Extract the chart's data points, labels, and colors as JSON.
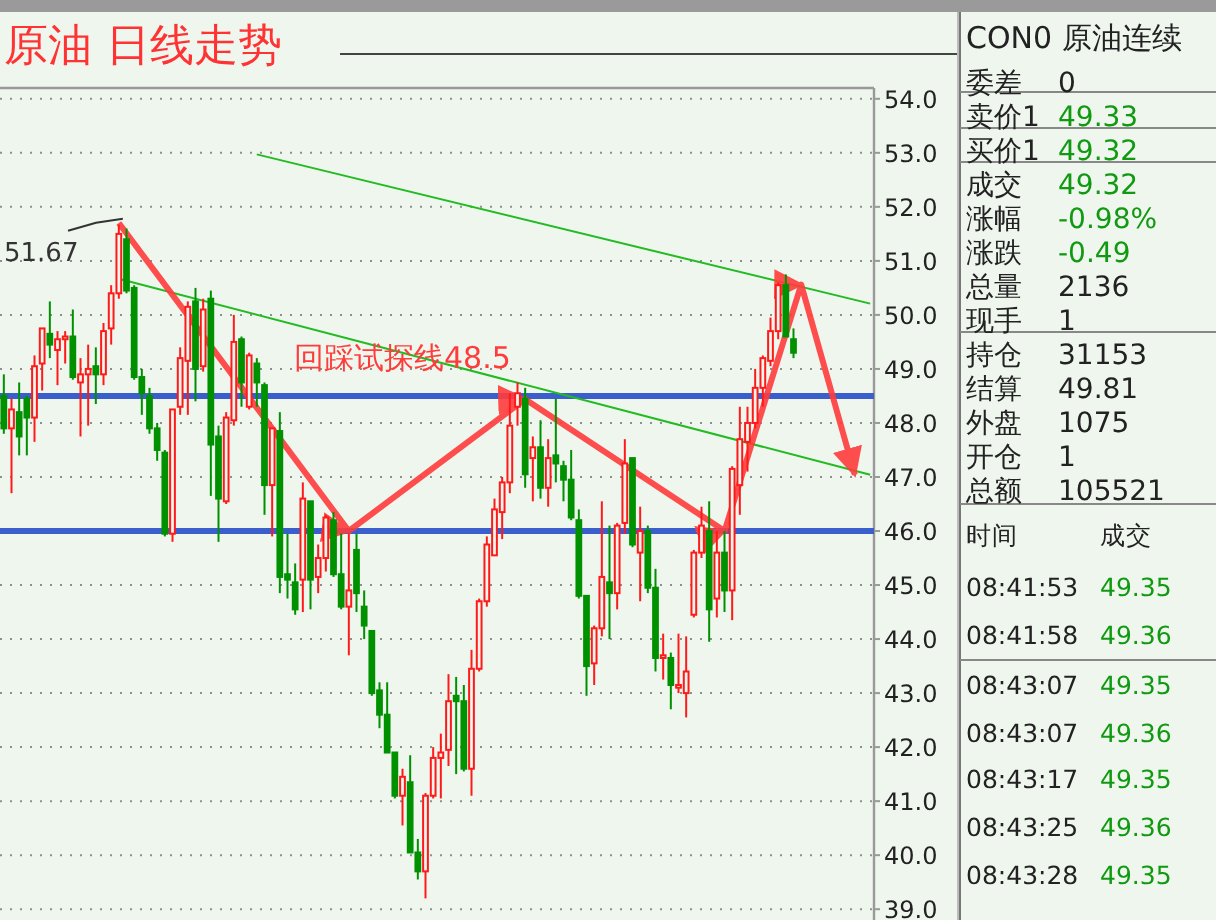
{
  "chart_data": [
    {
      "type": "candlestick",
      "title": "原油 日线走势",
      "categories": [
        null,
        null,
        null,
        null,
        null,
        null,
        null,
        null,
        null,
        null,
        null,
        null,
        null,
        null,
        null,
        null,
        null,
        null,
        null,
        null,
        null,
        null,
        null,
        null,
        null,
        null,
        null,
        null,
        null,
        null,
        null,
        null,
        null,
        null,
        null,
        null,
        null,
        null,
        null,
        null,
        null,
        null,
        null,
        null,
        null,
        null,
        null,
        null,
        null,
        null,
        null,
        null,
        null,
        null,
        null,
        null,
        null,
        null,
        null,
        null,
        null,
        null,
        null,
        null,
        null,
        null,
        null,
        null,
        null,
        null,
        null,
        null,
        null,
        null,
        null,
        null,
        null,
        null,
        null,
        null,
        null,
        null,
        null,
        null,
        null,
        null,
        null,
        null,
        null,
        null,
        null,
        null,
        null,
        null,
        null,
        null,
        null,
        null,
        null,
        null,
        null,
        null,
        null,
        null,
        null,
        null,
        null,
        null,
        null,
        null,
        null,
        null,
        null,
        null
      ],
      "ohlc": [
        [
          48.5,
          48.9,
          47.8,
          47.9
        ],
        [
          47.9,
          48.45,
          46.7,
          48.25
        ],
        [
          48.2,
          48.75,
          47.4,
          47.75
        ],
        [
          48.45,
          48.5,
          47.4,
          48.1
        ],
        [
          48.1,
          49.25,
          47.65,
          49.05
        ],
        [
          49.1,
          49.75,
          48.6,
          49.75
        ],
        [
          49.65,
          50.25,
          49.2,
          49.45
        ],
        [
          49.35,
          49.7,
          48.7,
          49.55
        ],
        [
          49.55,
          49.7,
          49.1,
          49.6
        ],
        [
          49.6,
          50.1,
          48.8,
          48.85
        ],
        [
          48.75,
          49.2,
          47.75,
          48.9
        ],
        [
          48.9,
          49.45,
          47.95,
          49.0
        ],
        [
          49.05,
          49.4,
          48.35,
          48.9
        ],
        [
          48.9,
          49.85,
          48.7,
          49.7
        ],
        [
          49.75,
          50.55,
          49.45,
          50.4
        ],
        [
          50.4,
          51.67,
          50.3,
          51.5
        ],
        [
          51.4,
          51.6,
          50.4,
          50.45
        ],
        [
          50.5,
          50.55,
          48.8,
          48.85
        ],
        [
          48.85,
          49.0,
          48.15,
          48.55
        ],
        [
          48.5,
          48.65,
          47.8,
          47.9
        ],
        [
          47.9,
          48.0,
          47.3,
          47.5
        ],
        [
          47.45,
          47.5,
          45.9,
          45.95
        ],
        [
          45.95,
          48.25,
          45.8,
          48.25
        ],
        [
          48.3,
          49.4,
          48.15,
          49.2
        ],
        [
          49.15,
          50.25,
          48.15,
          50.15
        ],
        [
          50.25,
          50.5,
          48.4,
          49.0
        ],
        [
          49.05,
          50.3,
          48.95,
          50.1
        ],
        [
          50.3,
          50.45,
          46.65,
          47.6
        ],
        [
          47.75,
          47.95,
          45.8,
          46.6
        ],
        [
          46.55,
          48.2,
          46.5,
          48.1
        ],
        [
          48.05,
          50.0,
          47.95,
          49.5
        ],
        [
          49.55,
          49.6,
          48.3,
          48.75
        ],
        [
          48.3,
          49.3,
          48.25,
          49.25
        ],
        [
          49.1,
          49.2,
          48.3,
          48.75
        ],
        [
          48.7,
          48.75,
          46.3,
          46.85
        ],
        [
          46.85,
          47.9,
          45.9,
          47.9
        ],
        [
          47.85,
          48.2,
          44.85,
          45.15
        ],
        [
          45.2,
          45.95,
          44.75,
          45.1
        ],
        [
          45.05,
          45.4,
          44.45,
          44.55
        ],
        [
          45.1,
          46.9,
          44.5,
          46.6
        ],
        [
          46.55,
          46.55,
          44.55,
          45.1
        ],
        [
          45.15,
          45.75,
          44.85,
          45.5
        ],
        [
          45.5,
          46.3,
          45.25,
          46.25
        ],
        [
          46.2,
          46.35,
          45.15,
          45.2
        ],
        [
          45.2,
          45.95,
          44.55,
          44.6
        ],
        [
          44.6,
          45.95,
          43.7,
          44.9
        ],
        [
          45.65,
          45.95,
          44.5,
          44.85
        ],
        [
          44.6,
          44.9,
          44.0,
          44.25
        ],
        [
          44.15,
          44.15,
          42.95,
          43.0
        ],
        [
          43.05,
          43.2,
          42.35,
          42.6
        ],
        [
          42.6,
          43.2,
          41.9,
          41.9
        ],
        [
          41.9,
          41.9,
          41.05,
          41.1
        ],
        [
          41.1,
          41.6,
          40.55,
          41.45
        ],
        [
          41.35,
          41.85,
          40.05,
          40.05
        ],
        [
          40.05,
          40.3,
          39.55,
          39.7
        ],
        [
          39.7,
          41.15,
          39.2,
          41.1
        ],
        [
          41.1,
          42.0,
          41.05,
          41.8
        ],
        [
          41.8,
          42.25,
          41.05,
          41.9
        ],
        [
          41.95,
          43.35,
          41.65,
          42.85
        ],
        [
          42.95,
          43.3,
          41.5,
          42.85
        ],
        [
          42.85,
          43.15,
          41.55,
          41.6
        ],
        [
          41.6,
          43.8,
          41.1,
          43.45
        ],
        [
          43.45,
          44.75,
          43.4,
          44.7
        ],
        [
          44.7,
          45.9,
          44.6,
          45.75
        ],
        [
          45.55,
          46.6,
          45.55,
          46.4
        ],
        [
          46.35,
          47.0,
          45.85,
          46.9
        ],
        [
          46.9,
          48.55,
          46.7,
          47.95
        ],
        [
          48.3,
          48.75,
          47.95,
          48.55
        ],
        [
          48.45,
          48.65,
          46.8,
          47.05
        ],
        [
          47.35,
          47.75,
          46.55,
          47.55
        ],
        [
          47.55,
          48.05,
          46.6,
          46.8
        ],
        [
          46.8,
          47.7,
          46.45,
          47.35
        ],
        [
          47.4,
          48.45,
          46.9,
          47.25
        ],
        [
          47.2,
          47.3,
          46.55,
          46.95
        ],
        [
          46.95,
          47.5,
          46.2,
          46.25
        ],
        [
          46.2,
          46.4,
          44.75,
          44.8
        ],
        [
          44.8,
          44.8,
          42.95,
          43.5
        ],
        [
          43.55,
          44.25,
          43.15,
          44.2
        ],
        [
          44.2,
          46.55,
          44.05,
          45.15
        ],
        [
          45.05,
          46.1,
          44.0,
          44.85
        ],
        [
          44.85,
          46.15,
          44.55,
          46.1
        ],
        [
          46.15,
          47.7,
          45.95,
          47.25
        ],
        [
          47.35,
          47.35,
          45.7,
          45.75
        ],
        [
          45.6,
          46.45,
          44.7,
          46.0
        ],
        [
          46.0,
          46.1,
          44.85,
          44.95
        ],
        [
          44.95,
          45.3,
          43.4,
          43.65
        ],
        [
          43.65,
          44.1,
          43.25,
          43.7
        ],
        [
          43.65,
          43.75,
          42.7,
          43.15
        ],
        [
          43.1,
          44.1,
          43.0,
          43.15
        ],
        [
          43.0,
          44.05,
          42.55,
          43.4
        ],
        [
          44.45,
          45.65,
          44.4,
          45.6
        ],
        [
          45.6,
          46.45,
          45.5,
          46.1
        ],
        [
          46.0,
          46.55,
          43.95,
          44.55
        ],
        [
          44.75,
          46.0,
          44.4,
          45.6
        ],
        [
          45.6,
          46.0,
          44.5,
          44.9
        ],
        [
          44.9,
          47.2,
          44.35,
          47.15
        ],
        [
          46.85,
          48.3,
          46.3,
          47.7
        ],
        [
          47.65,
          48.3,
          47.1,
          48.0
        ],
        [
          48.0,
          49.0,
          47.9,
          48.65
        ],
        [
          48.65,
          49.25,
          48.3,
          49.2
        ],
        [
          49.15,
          49.95,
          49.05,
          49.7
        ],
        [
          49.7,
          50.6,
          49.55,
          50.55
        ],
        [
          50.55,
          50.75,
          49.6,
          49.6
        ],
        [
          49.55,
          49.75,
          49.2,
          49.3
        ],
        null,
        null,
        null,
        null,
        null,
        null,
        null,
        null,
        null,
        null
      ],
      "colors": [
        "#009100",
        "#ff1a1a",
        "#009100",
        "#009100",
        "#ff1a1a",
        "#ff1a1a",
        "#009100",
        "#ff1a1a",
        "#ff1a1a",
        "#009100",
        "#ff1a1a",
        "#ff1a1a",
        "#009100",
        "#ff1a1a",
        "#ff1a1a",
        "#ff1a1a",
        "#009100",
        "#009100",
        "#009100",
        "#009100",
        "#009100",
        "#009100",
        "#ff1a1a",
        "#ff1a1a",
        "#ff1a1a",
        "#009100",
        "#ff1a1a",
        "#009100",
        "#009100",
        "#ff1a1a",
        "#ff1a1a",
        "#009100",
        "#ff1a1a",
        "#009100",
        "#009100",
        "#ff1a1a",
        "#009100",
        "#009100",
        "#009100",
        "#ff1a1a",
        "#009100",
        "#ff1a1a",
        "#ff1a1a",
        "#009100",
        "#009100",
        "#ff1a1a",
        "#009100",
        "#009100",
        "#009100",
        "#009100",
        "#009100",
        "#009100",
        "#ff1a1a",
        "#009100",
        "#009100",
        "#ff1a1a",
        "#ff1a1a",
        "#ff1a1a",
        "#ff1a1a",
        "#009100",
        "#009100",
        "#ff1a1a",
        "#ff1a1a",
        "#ff1a1a",
        "#ff1a1a",
        "#ff1a1a",
        "#ff1a1a",
        "#ff1a1a",
        "#009100",
        "#ff1a1a",
        "#009100",
        "#ff1a1a",
        "#009100",
        "#009100",
        "#009100",
        "#009100",
        "#009100",
        "#ff1a1a",
        "#ff1a1a",
        "#009100",
        "#ff1a1a",
        "#ff1a1a",
        "#009100",
        "#ff1a1a",
        "#009100",
        "#009100",
        "#ff1a1a",
        "#009100",
        "#ff1a1a",
        "#ff1a1a",
        "#ff1a1a",
        "#ff1a1a",
        "#009100",
        "#ff1a1a",
        "#009100",
        "#ff1a1a",
        "#ff1a1a",
        "#ff1a1a",
        "#ff1a1a",
        "#ff1a1a",
        "#ff1a1a",
        "#ff1a1a",
        "#009100",
        "#009100",
        null,
        null,
        null,
        null,
        null,
        null,
        null,
        null,
        null,
        null
      ],
      "series": [
        {
          "type": "line",
          "color": "#22bb22",
          "values": [
            null,
            null,
            null,
            null,
            null,
            null,
            null,
            null,
            null,
            null,
            null,
            null,
            null,
            null,
            null,
            null,
            null,
            null,
            null,
            null,
            null,
            null,
            null,
            null,
            null,
            null,
            null,
            null,
            null,
            null,
            null,
            null,
            null,
            52.97,
            null,
            null,
            null,
            null,
            null,
            null,
            null,
            null,
            null,
            null,
            null,
            null,
            null,
            null,
            null,
            null,
            null,
            null,
            null,
            null,
            null,
            null,
            null,
            null,
            null,
            null,
            null,
            null,
            null,
            null,
            null,
            null,
            null,
            null,
            null,
            null,
            null,
            null,
            null,
            null,
            null,
            null,
            null,
            null,
            null,
            null,
            null,
            null,
            null,
            null,
            null,
            null,
            null,
            null,
            null,
            null,
            null,
            null,
            null,
            null,
            null,
            null,
            null,
            null,
            null,
            null,
            null,
            null,
            null,
            null,
            null,
            null,
            null,
            null,
            null,
            null,
            null,
            null,
            null,
            50.21
          ]
        },
        {
          "type": "line",
          "color": "#22bb22",
          "values": [
            null,
            null,
            null,
            null,
            null,
            null,
            null,
            null,
            null,
            null,
            null,
            null,
            null,
            null,
            null,
            50.67,
            null,
            null,
            null,
            null,
            null,
            null,
            null,
            null,
            null,
            null,
            null,
            null,
            null,
            null,
            null,
            null,
            null,
            null,
            null,
            null,
            null,
            null,
            null,
            null,
            null,
            null,
            null,
            null,
            null,
            null,
            null,
            null,
            null,
            null,
            null,
            null,
            null,
            null,
            null,
            null,
            null,
            null,
            null,
            null,
            null,
            null,
            null,
            null,
            null,
            null,
            null,
            null,
            null,
            null,
            null,
            null,
            null,
            null,
            null,
            null,
            null,
            null,
            null,
            null,
            null,
            null,
            null,
            null,
            null,
            null,
            null,
            null,
            null,
            null,
            null,
            null,
            null,
            null,
            null,
            null,
            null,
            null,
            null,
            null,
            null,
            null,
            null,
            null,
            null,
            null,
            null,
            null,
            null,
            null,
            null,
            null,
            null,
            47.04
          ]
        },
        {
          "type": "line",
          "color": "#ff3c3c",
          "values": [
            null,
            null,
            null,
            null,
            null,
            null,
            null,
            null,
            null,
            null,
            null,
            null,
            null,
            null,
            null,
            51.7,
            null,
            null,
            null,
            null,
            null,
            null,
            null,
            null,
            null,
            null,
            null,
            null,
            null,
            null,
            null,
            null,
            null,
            null,
            null,
            null,
            null,
            null,
            null,
            null,
            null,
            null,
            null,
            null,
            null,
            46.0,
            null,
            null,
            null,
            null,
            null,
            null,
            null,
            null,
            null,
            null,
            null,
            null,
            null,
            null,
            null,
            null,
            null,
            null,
            null,
            null,
            null,
            null,
            48.44,
            null,
            null,
            null,
            null,
            null,
            null,
            null,
            null,
            null,
            null,
            null,
            null,
            null,
            null,
            null,
            null,
            null,
            null,
            null,
            null,
            null,
            null,
            null,
            null,
            null,
            46.0,
            null,
            null,
            null,
            null,
            null,
            null,
            null,
            null,
            null,
            50.56,
            null,
            null,
            null,
            null,
            null,
            null,
            47.04,
            null,
            null
          ]
        }
      ],
      "ref_lines": [
        {
          "axis": "y",
          "value": 48.5,
          "label": "回踩试探线48.5",
          "color": "#3a5fcd"
        },
        {
          "axis": "y",
          "value": 46.0,
          "color": "#3a5fcd"
        }
      ],
      "annotations": [
        "51.67"
      ],
      "ylim": [
        38.8,
        54.2
      ],
      "yticks": [
        {
          "value": 39,
          "label": "39.0"
        },
        {
          "value": 40,
          "label": "40.0"
        },
        {
          "value": 41,
          "label": "41.0"
        },
        {
          "value": 42,
          "label": "42.0"
        },
        {
          "value": 43,
          "label": "43.0"
        },
        {
          "value": 44,
          "label": "44.0"
        },
        {
          "value": 45,
          "label": "45.0"
        },
        {
          "value": 46,
          "label": "46.0"
        },
        {
          "value": 47,
          "label": "47.0"
        },
        {
          "value": 48,
          "label": "48.0"
        },
        {
          "value": 49,
          "label": "49.0"
        },
        {
          "value": 50,
          "label": "50.0"
        },
        {
          "value": 51,
          "label": "51.0"
        },
        {
          "value": 52,
          "label": "52.0"
        },
        {
          "value": 53,
          "label": "53.0"
        },
        {
          "value": 54,
          "label": "54.0"
        }
      ],
      "grid": "y",
      "tick_labels": "y"
    },
    {
      "type": "other",
      "title": "CON0 原油连续",
      "annotations": [
        "委差",
        "0",
        "卖价1",
        "49.33",
        "买价1",
        "49.32",
        "成交",
        "49.32",
        "涨幅",
        "-0.98%",
        "涨跌",
        "-0.49",
        "总量",
        "2136",
        "现手",
        "1",
        "持仓",
        "31153",
        "结算",
        "49.81",
        "外盘",
        "1075",
        "开仓",
        "1",
        "总额",
        "105521",
        "时间",
        "成交",
        "08:41:53",
        "49.35",
        "08:41:58",
        "49.36",
        "08:43:07",
        "49.35",
        "08:43:07",
        "49.36",
        "08:43:17",
        "49.35",
        "08:43:25",
        "49.36",
        "08:43:28",
        "49.35"
      ]
    }
  ]
}
